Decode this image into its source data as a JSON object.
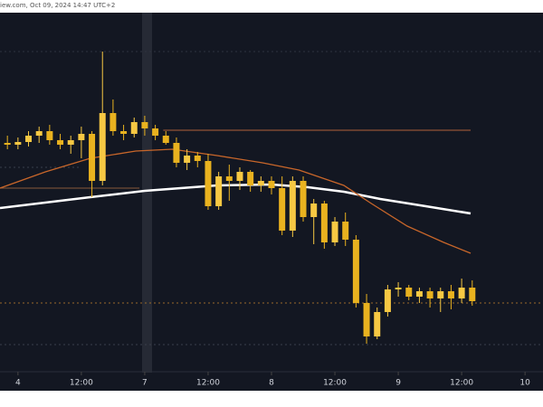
{
  "chart_data": {
    "type": "candlestick",
    "title": "iew.com, Oct 09, 2024 14:47 UTC+2",
    "xlim": [
      -3.4,
      99.4
    ],
    "ylim": [
      0,
      395
    ],
    "xticks": [
      {
        "value": 0,
        "label": "4"
      },
      {
        "value": 12,
        "label": "12:00"
      },
      {
        "value": 24,
        "label": "7"
      },
      {
        "value": 36,
        "label": "12:00"
      },
      {
        "value": 48,
        "label": "8"
      },
      {
        "value": 60,
        "label": "12:00"
      },
      {
        "value": 72,
        "label": "9"
      },
      {
        "value": 84,
        "label": "12:00"
      },
      {
        "value": 96,
        "label": "10"
      }
    ],
    "colors": {
      "up": "#f7c843",
      "down": "#e9b21f"
    },
    "x": [
      -2,
      0,
      2,
      4,
      6,
      8,
      10,
      12,
      14,
      16,
      18,
      20,
      22,
      24,
      26,
      28,
      30,
      32,
      34,
      36,
      38,
      40,
      42,
      44,
      46,
      48,
      50,
      52,
      54,
      56,
      58,
      60,
      62,
      64,
      66,
      68,
      70,
      72,
      74,
      76,
      78,
      80,
      82,
      84,
      86
    ],
    "open": [
      252,
      250,
      253,
      260,
      265,
      255,
      250,
      255,
      262,
      210,
      285,
      265,
      262,
      275,
      268,
      260,
      252,
      230,
      238,
      232,
      182,
      215,
      210,
      220,
      205,
      210,
      202,
      155,
      210,
      170,
      185,
      142,
      165,
      145,
      75,
      38,
      65,
      90,
      92,
      82,
      88,
      80,
      88,
      80,
      92
    ],
    "high": [
      260,
      258,
      265,
      270,
      272,
      262,
      260,
      270,
      265,
      353,
      300,
      272,
      280,
      282,
      272,
      265,
      258,
      245,
      242,
      240,
      220,
      228,
      225,
      222,
      215,
      215,
      215,
      215,
      215,
      190,
      188,
      170,
      175,
      150,
      85,
      70,
      95,
      98,
      95,
      92,
      92,
      92,
      95,
      102,
      100
    ],
    "low": [
      245,
      245,
      248,
      252,
      250,
      245,
      240,
      235,
      192,
      205,
      260,
      255,
      258,
      260,
      255,
      250,
      225,
      222,
      225,
      178,
      178,
      188,
      200,
      198,
      198,
      195,
      150,
      148,
      165,
      140,
      135,
      138,
      138,
      70,
      30,
      35,
      60,
      82,
      78,
      75,
      70,
      65,
      68,
      75,
      72
    ],
    "close": [
      250,
      253,
      260,
      265,
      255,
      250,
      255,
      262,
      210,
      285,
      265,
      262,
      275,
      268,
      260,
      252,
      230,
      238,
      232,
      182,
      215,
      210,
      220,
      205,
      210,
      202,
      155,
      210,
      170,
      185,
      142,
      165,
      145,
      75,
      38,
      65,
      90,
      92,
      82,
      88,
      80,
      88,
      80,
      92,
      77
    ],
    "lines": [
      {
        "color": "#ffffff",
        "width": 2.5,
        "x": [
          -3.4,
          13.7,
          24,
          37.7,
          48,
          54.9,
          61.7,
          68.6,
          77.2,
          85.7
        ],
        "values": [
          180,
          192,
          199,
          205,
          206,
          203,
          198,
          190,
          182,
          174
        ]
      },
      {
        "color": "#c8662a",
        "width": 1.3,
        "x": [
          -3.4,
          5.2,
          13.7,
          22.3,
          29.2,
          37.7,
          46.3,
          53.2,
          61.7,
          66.9,
          73.7,
          80.6,
          85.7
        ],
        "values": [
          202,
          220,
          235,
          243,
          245,
          238,
          230,
          222,
          205,
          185,
          160,
          142,
          130
        ]
      }
    ],
    "levels": [
      {
        "value": 266,
        "from": 27.5,
        "to": 85.7,
        "color": "#b0603a",
        "dash": false
      },
      {
        "value": 202,
        "from": -3.4,
        "to": 23,
        "color": "#8a5a3a",
        "dash": false
      },
      {
        "value": 75,
        "from": -3.4,
        "to": 99.4,
        "color": "#9a6a2a",
        "dash": true
      },
      {
        "value": 29,
        "from": -3.4,
        "to": 99.4,
        "color": "#3a3f4c",
        "dash": true
      },
      {
        "value": 353,
        "from": -3.4,
        "to": 99.4,
        "color": "#2e3340",
        "dash": true
      },
      {
        "value": 225,
        "from": -3.4,
        "to": 12,
        "color": "#3a3f4c",
        "dash": true
      }
    ]
  }
}
